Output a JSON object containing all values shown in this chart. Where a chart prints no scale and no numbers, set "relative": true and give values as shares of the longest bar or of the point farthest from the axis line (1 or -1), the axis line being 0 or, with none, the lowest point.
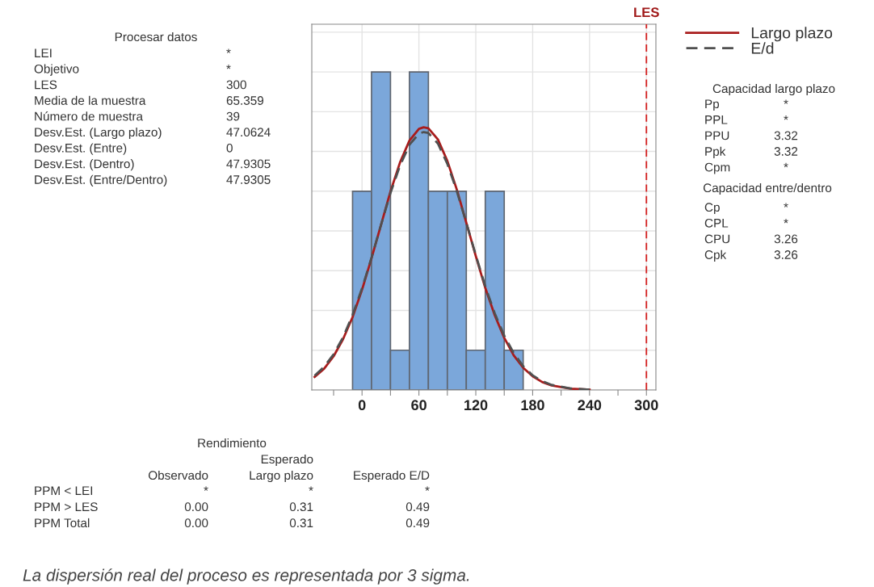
{
  "chart_data": {
    "type": "histogram",
    "relative": true,
    "bins": [
      -10,
      10,
      30,
      50,
      70,
      90,
      110,
      130,
      150,
      170
    ],
    "values": [
      0.625,
      1,
      0.125,
      1,
      0.625,
      0.625,
      0.125,
      0.625,
      0.125
    ],
    "color": "#7ba7da",
    "series": [
      {
        "name": "Largo plazo",
        "type": "line",
        "color": "#a81c1c",
        "line_style": "solid",
        "x": [
          -50,
          -40,
          -30,
          -20,
          -10,
          0,
          10,
          20,
          30,
          40,
          50,
          60,
          65,
          70,
          80,
          90,
          100,
          110,
          120,
          130,
          140,
          150,
          160,
          170,
          180,
          190,
          200,
          220,
          240
        ],
        "values": [
          0.041,
          0.067,
          0.106,
          0.16,
          0.229,
          0.315,
          0.414,
          0.519,
          0.624,
          0.715,
          0.784,
          0.821,
          0.826,
          0.823,
          0.788,
          0.72,
          0.63,
          0.526,
          0.421,
          0.321,
          0.235,
          0.164,
          0.109,
          0.07,
          0.043,
          0.025,
          0.014,
          0.004,
          0.001
        ]
      },
      {
        "name": "E/d",
        "type": "line",
        "color": "#505050",
        "line_style": "dashed",
        "x": [
          -50,
          -40,
          -30,
          -20,
          -10,
          0,
          10,
          20,
          30,
          40,
          50,
          60,
          65,
          70,
          80,
          90,
          100,
          110,
          120,
          130,
          140,
          150,
          160,
          170,
          180,
          190,
          200,
          220,
          240
        ],
        "values": [
          0.045,
          0.073,
          0.112,
          0.166,
          0.236,
          0.32,
          0.416,
          0.519,
          0.619,
          0.705,
          0.771,
          0.806,
          0.811,
          0.808,
          0.775,
          0.711,
          0.625,
          0.526,
          0.424,
          0.326,
          0.241,
          0.171,
          0.116,
          0.075,
          0.046,
          0.028,
          0.016,
          0.005,
          0.001
        ]
      }
    ],
    "xlim": [
      -53,
      310
    ],
    "xticks": [
      {
        "value": -30,
        "label": null
      },
      0,
      {
        "value": 30,
        "label": null
      },
      60,
      {
        "value": 90,
        "label": null
      },
      120,
      {
        "value": 150,
        "label": null
      },
      180,
      {
        "value": 210,
        "label": null
      },
      240,
      {
        "value": 270,
        "label": null
      },
      300
    ],
    "ref_lines": [
      {
        "axis": "x",
        "value": 300,
        "label": "LES",
        "color": "#d42020",
        "line_style": "dashed"
      }
    ],
    "grid": true,
    "legend": "right",
    "annotations": [
      "Procesar datos",
      "LEI",
      "*",
      "Objetivo",
      "*",
      "LES",
      "300",
      "Media de la muestra",
      "65.359",
      "Número de muestra",
      "39",
      "Desv.Est. (Largo plazo)",
      "47.0624",
      "Desv.Est. (Entre)",
      "0",
      "Desv.Est. (Dentro)",
      "47.9305",
      "Desv.Est. (Entre/Dentro)",
      "47.9305",
      "Capacidad largo plazo",
      "Pp",
      "*",
      "PPL",
      "*",
      "PPU",
      "3.32",
      "Ppk",
      "3.32",
      "Cpm",
      "*",
      "Capacidad entre/dentro",
      "Cp",
      "*",
      "CPL",
      "*",
      "CPU",
      "3.26",
      "Cpk",
      "3.26",
      "Rendimiento",
      "Esperado",
      "Observado",
      "Largo plazo",
      "Esperado E/D",
      "PPM < LEI",
      "*",
      "*",
      "*",
      "PPM > LES",
      "0.00",
      "0.31",
      "0.49",
      "PPM Total",
      "0.00",
      "0.31",
      "0.49",
      "La dispersión real del proceso es representada por 3 sigma."
    ]
  }
}
